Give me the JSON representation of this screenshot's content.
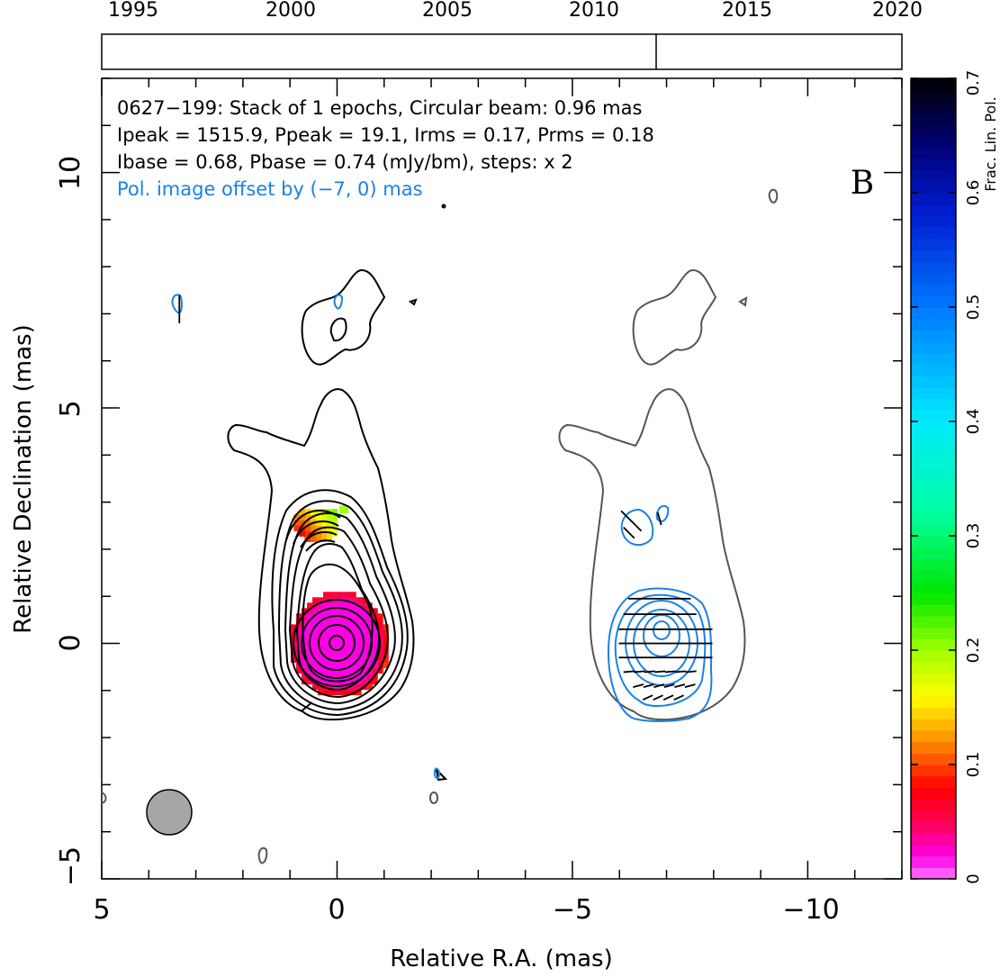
{
  "chart_data": {
    "type": "heatmap",
    "source": "0627−199",
    "annotations": [
      "0627−199: Stack of 1 epochs, Circular beam: 0.96 mas",
      "Ipeak = 1515.9, Ppeak = 19.1, Irms = 0.17, Prms = 0.18",
      "Ibase = 0.68, Pbase = 0.74 (mJy/bm), steps: x 2",
      "Pol. image offset by (−7, 0) mas"
    ],
    "panel_label": "B",
    "xlabel": "Relative R.A. (mas)",
    "ylabel": "Relative Declination (mas)",
    "xlim": [
      5,
      -12
    ],
    "ylim": [
      -5,
      12
    ],
    "x_ticks": [
      5,
      0,
      -5,
      -10
    ],
    "x_tick_labels": [
      "5",
      "0",
      "−5",
      "−10"
    ],
    "y_ticks": [
      -5,
      0,
      5,
      10
    ],
    "y_tick_labels": [
      "−5",
      "0",
      "5",
      "10"
    ],
    "epoch_axis": {
      "range": [
        1995,
        2020
      ],
      "tick_labels": [
        "1995",
        "2000",
        "2005",
        "2010",
        "2015",
        "2020"
      ],
      "epochs": [
        2012.1
      ]
    },
    "colorbar": {
      "label": "Frac. Lin. Pol.",
      "range": [
        0,
        0.7
      ],
      "tick_labels": [
        "0",
        "0.1",
        "0.2",
        "0.3",
        "0.4",
        "0.5",
        "0.6",
        "0.7"
      ]
    },
    "beam": {
      "diameter_mas": 0.96,
      "x": 3.55,
      "y": -3.6
    },
    "pol_offset_mas": [
      -7,
      0
    ],
    "colors": {
      "stokes_i_contour": "#000000",
      "offset_i_contour": "#555555",
      "pol_contour": "#1a82e6",
      "evpa_ticks": "#000000",
      "beam_fill": "#a6a6a6"
    }
  }
}
